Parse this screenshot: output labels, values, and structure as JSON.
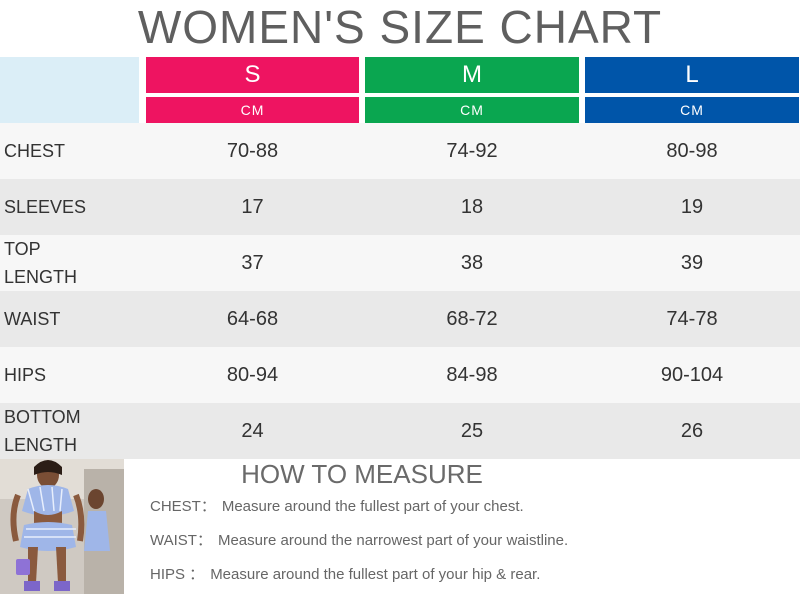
{
  "title": "WOMEN'S SIZE CHART",
  "colors": {
    "S": "#ee1461",
    "M": "#0aa650",
    "L": "#0055a9",
    "corner": "#dbeef7"
  },
  "sizes": [
    {
      "label": "S",
      "unit": "CM"
    },
    {
      "label": "M",
      "unit": "CM"
    },
    {
      "label": "L",
      "unit": "CM"
    }
  ],
  "rows": [
    {
      "label": "CHEST",
      "values": [
        "70-88",
        "74-92",
        "80-98"
      ]
    },
    {
      "label": "SLEEVES",
      "values": [
        "17",
        "18",
        "19"
      ]
    },
    {
      "label": "TOP LENGTH",
      "values": [
        "37",
        "38",
        "39"
      ]
    },
    {
      "label": "WAIST",
      "values": [
        "64-68",
        "68-72",
        "74-78"
      ]
    },
    {
      "label": "HIPS",
      "values": [
        "80-94",
        "84-98",
        "90-104"
      ]
    },
    {
      "label": "BOTTOM LENGTH",
      "values": [
        "24",
        "25",
        "26"
      ]
    }
  ],
  "how_to_measure": {
    "title": "HOW TO MEASURE",
    "items": [
      {
        "label": "CHEST：",
        "text": "Measure around the fullest part of your chest."
      },
      {
        "label": "WAIST：",
        "text": "Measure around the narrowest part of your waistline."
      },
      {
        "label": "HIPS ：",
        "text": "Measure around the fullest part of your hip & rear."
      }
    ]
  }
}
